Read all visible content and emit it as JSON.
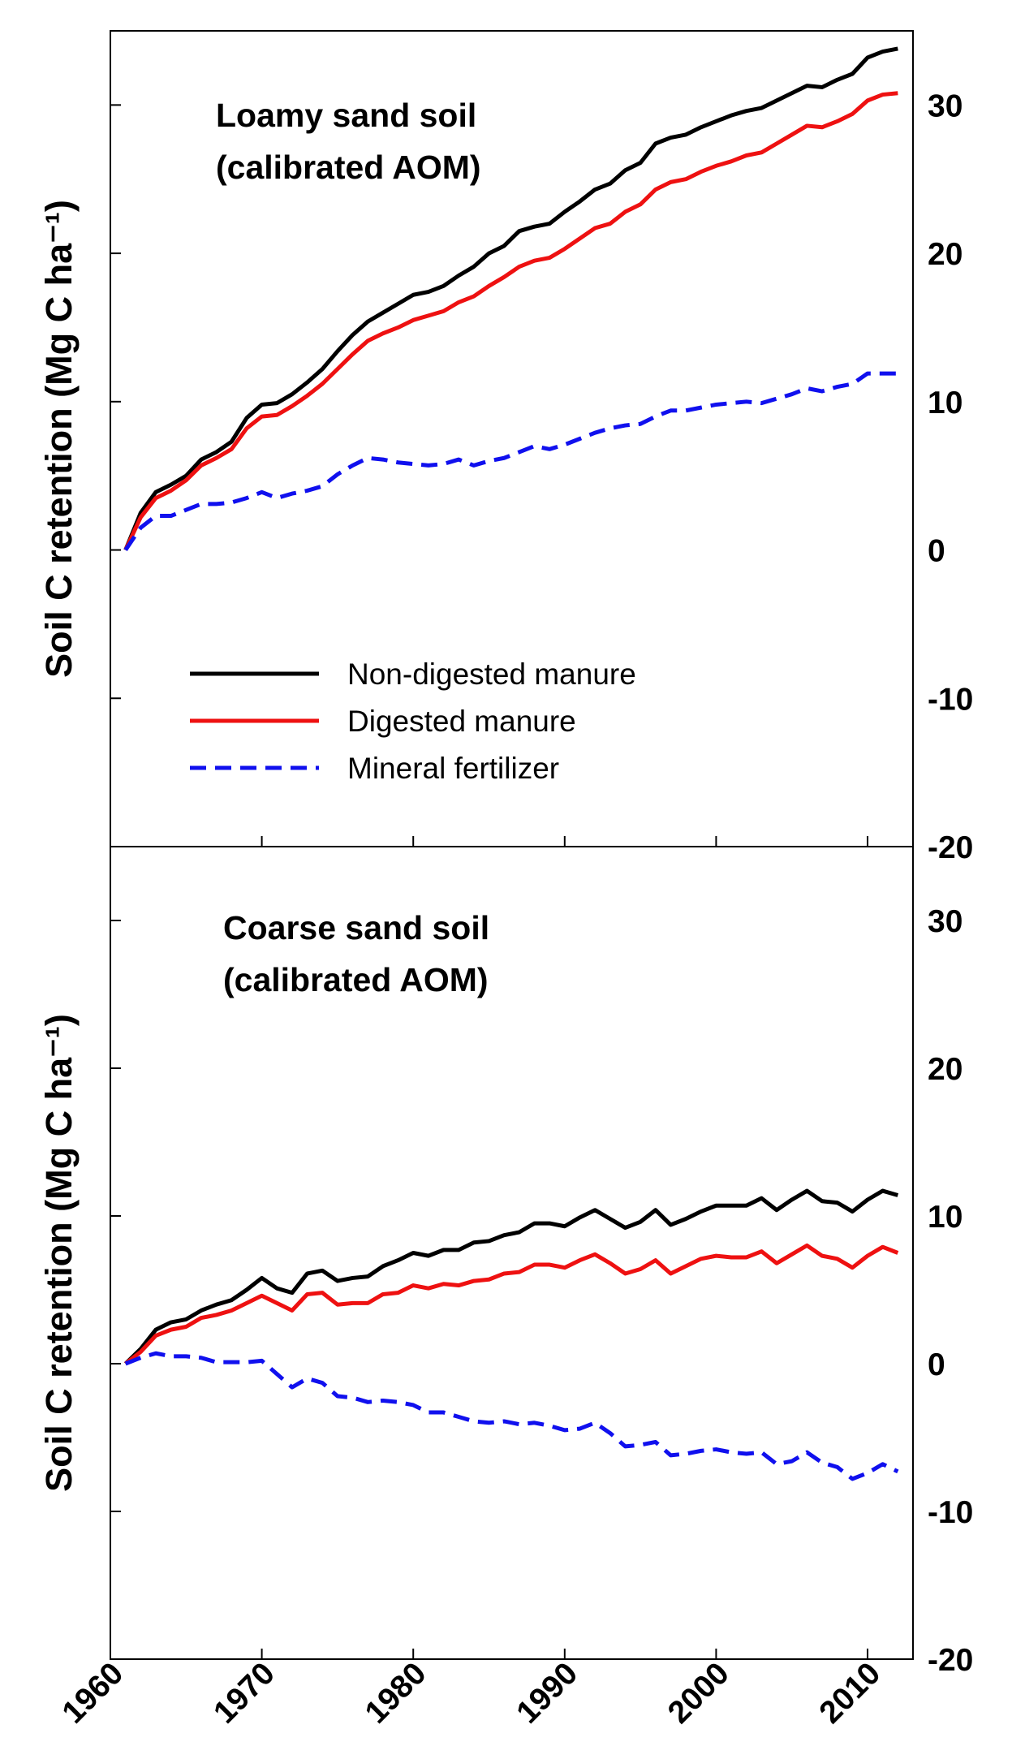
{
  "chart_data": [
    {
      "type": "line",
      "title": "Loamy sand soil",
      "subtitle": "(calibrated AOM)",
      "y_label": "Soil C retention (Mg C ha⁻¹)",
      "x": [
        1961,
        1962,
        1963,
        1964,
        1965,
        1966,
        1967,
        1968,
        1969,
        1970,
        1971,
        1972,
        1973,
        1974,
        1975,
        1976,
        1977,
        1978,
        1979,
        1980,
        1981,
        1982,
        1983,
        1984,
        1985,
        1986,
        1987,
        1988,
        1989,
        1990,
        1991,
        1992,
        1993,
        1994,
        1995,
        1996,
        1997,
        1998,
        1999,
        2000,
        2001,
        2002,
        2003,
        2004,
        2005,
        2006,
        2007,
        2008,
        2009,
        2010,
        2011,
        2012
      ],
      "xlim": [
        1960,
        2013
      ],
      "xticks": [
        1960,
        1970,
        1980,
        1990,
        2000,
        2010
      ],
      "ylim": [
        -20,
        35
      ],
      "yticks": [
        -20,
        -10,
        0,
        10,
        20,
        30
      ],
      "legend": "lower left",
      "series": [
        {
          "name": "Non-digested manure",
          "color": "#000000",
          "dash": false,
          "values": [
            0,
            2.5,
            3.9,
            4.4,
            5.0,
            6.1,
            6.6,
            7.3,
            8.9,
            9.8,
            9.9,
            10.5,
            11.3,
            12.2,
            13.4,
            14.5,
            15.4,
            16.0,
            16.6,
            17.2,
            17.4,
            17.8,
            18.5,
            19.1,
            20.0,
            20.5,
            21.5,
            21.8,
            22.0,
            22.8,
            23.5,
            24.3,
            24.7,
            25.6,
            26.1,
            27.4,
            27.8,
            28.0,
            28.5,
            28.9,
            29.3,
            29.6,
            29.8,
            30.3,
            30.8,
            31.3,
            31.2,
            31.7,
            32.1,
            33.2,
            33.6,
            33.8
          ]
        },
        {
          "name": "Digested manure",
          "color": "#ee1111",
          "dash": false,
          "values": [
            0,
            2.2,
            3.5,
            4.0,
            4.7,
            5.7,
            6.2,
            6.8,
            8.2,
            9.0,
            9.1,
            9.7,
            10.4,
            11.2,
            12.2,
            13.2,
            14.1,
            14.6,
            15.0,
            15.5,
            15.8,
            16.1,
            16.7,
            17.1,
            17.8,
            18.4,
            19.1,
            19.5,
            19.7,
            20.3,
            21.0,
            21.7,
            22.0,
            22.8,
            23.3,
            24.3,
            24.8,
            25.0,
            25.5,
            25.9,
            26.2,
            26.6,
            26.8,
            27.4,
            28.0,
            28.6,
            28.5,
            28.9,
            29.4,
            30.3,
            30.7,
            30.8
          ]
        },
        {
          "name": "Mineral fertilizer",
          "color": "#1010ee",
          "dash": true,
          "values": [
            0,
            1.5,
            2.3,
            2.3,
            2.7,
            3.1,
            3.1,
            3.2,
            3.5,
            3.9,
            3.5,
            3.8,
            4.0,
            4.3,
            5.1,
            5.7,
            6.2,
            6.1,
            5.9,
            5.8,
            5.7,
            5.8,
            6.1,
            5.7,
            6.0,
            6.2,
            6.6,
            7.0,
            6.8,
            7.1,
            7.5,
            7.9,
            8.2,
            8.4,
            8.5,
            9.0,
            9.4,
            9.4,
            9.6,
            9.8,
            9.9,
            10.0,
            9.9,
            10.2,
            10.5,
            10.9,
            10.7,
            11.0,
            11.2,
            11.9,
            11.9,
            11.9
          ]
        }
      ]
    },
    {
      "type": "line",
      "title": "Coarse sand soil",
      "subtitle": "(calibrated AOM)",
      "y_label": "Soil C retention (Mg C ha⁻¹)",
      "x": [
        1961,
        1962,
        1963,
        1964,
        1965,
        1966,
        1967,
        1968,
        1969,
        1970,
        1971,
        1972,
        1973,
        1974,
        1975,
        1976,
        1977,
        1978,
        1979,
        1980,
        1981,
        1982,
        1983,
        1984,
        1985,
        1986,
        1987,
        1988,
        1989,
        1990,
        1991,
        1992,
        1993,
        1994,
        1995,
        1996,
        1997,
        1998,
        1999,
        2000,
        2001,
        2002,
        2003,
        2004,
        2005,
        2006,
        2007,
        2008,
        2009,
        2010,
        2011,
        2012
      ],
      "xlim": [
        1960,
        2013
      ],
      "xticks": [
        1960,
        1970,
        1980,
        1990,
        2000,
        2010
      ],
      "ylim": [
        -20,
        35
      ],
      "yticks": [
        -20,
        -10,
        0,
        10,
        20,
        30
      ],
      "series": [
        {
          "color": "#000000",
          "dash": false,
          "values": [
            0,
            1.0,
            2.3,
            2.8,
            3.0,
            3.6,
            4.0,
            4.3,
            5.0,
            5.8,
            5.1,
            4.8,
            6.1,
            6.3,
            5.6,
            5.8,
            5.9,
            6.6,
            7.0,
            7.5,
            7.3,
            7.7,
            7.7,
            8.2,
            8.3,
            8.7,
            8.9,
            9.5,
            9.5,
            9.3,
            9.9,
            10.4,
            9.8,
            9.2,
            9.6,
            10.4,
            9.4,
            9.8,
            10.3,
            10.7,
            10.7,
            10.7,
            11.2,
            10.4,
            11.1,
            11.7,
            11.0,
            10.9,
            10.3,
            11.1,
            11.7,
            11.4
          ]
        },
        {
          "color": "#ee1111",
          "dash": false,
          "values": [
            0,
            0.8,
            1.9,
            2.3,
            2.5,
            3.1,
            3.3,
            3.6,
            4.1,
            4.6,
            4.1,
            3.6,
            4.7,
            4.8,
            4.0,
            4.1,
            4.1,
            4.7,
            4.8,
            5.3,
            5.1,
            5.4,
            5.3,
            5.6,
            5.7,
            6.1,
            6.2,
            6.7,
            6.7,
            6.5,
            7.0,
            7.4,
            6.8,
            6.1,
            6.4,
            7.0,
            6.1,
            6.6,
            7.1,
            7.3,
            7.2,
            7.2,
            7.6,
            6.8,
            7.4,
            8.0,
            7.3,
            7.1,
            6.5,
            7.3,
            7.9,
            7.5
          ]
        },
        {
          "color": "#1010ee",
          "dash": true,
          "values": [
            0,
            0.4,
            0.7,
            0.5,
            0.5,
            0.4,
            0.1,
            0.1,
            0.1,
            0.2,
            -0.7,
            -1.6,
            -1.0,
            -1.3,
            -2.2,
            -2.3,
            -2.6,
            -2.5,
            -2.6,
            -2.8,
            -3.3,
            -3.3,
            -3.6,
            -3.9,
            -4.0,
            -3.9,
            -4.1,
            -4.0,
            -4.2,
            -4.5,
            -4.4,
            -4.0,
            -4.7,
            -5.6,
            -5.5,
            -5.3,
            -6.2,
            -6.1,
            -5.9,
            -5.8,
            -6.0,
            -6.1,
            -6.0,
            -6.8,
            -6.6,
            -6.0,
            -6.7,
            -7.0,
            -7.8,
            -7.4,
            -6.8,
            -7.3
          ]
        }
      ]
    }
  ]
}
